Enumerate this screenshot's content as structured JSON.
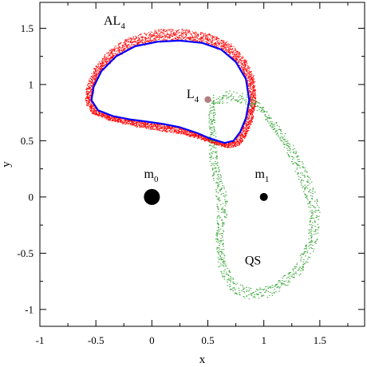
{
  "chart_data": {
    "type": "scatter",
    "xlabel": "x",
    "ylabel": "y",
    "xlim": [
      -1.0,
      1.9
    ],
    "ylim": [
      -1.15,
      1.73
    ],
    "x_ticks": [
      -1,
      -0.5,
      0,
      0.5,
      1,
      1.5
    ],
    "x_tick_labels": [
      "-1",
      "-0.5",
      "0",
      "0.5",
      "1",
      "1.5"
    ],
    "y_ticks": [
      -1,
      -0.5,
      0,
      0.5,
      1,
      1.5
    ],
    "y_tick_labels": [
      "-1",
      "-0.5",
      "0",
      "0.5",
      "1",
      "1.5"
    ],
    "grid": false,
    "colors": {
      "al4_dots": "#ff0000",
      "al4_curve": "#0000ff",
      "qs_dots": "#2ca02c",
      "l4_point": "#b08080",
      "masses": "#000000"
    },
    "annotations": {
      "al4": {
        "main": "AL",
        "sub": "4",
        "x": -0.43,
        "y": 1.53
      },
      "l4": {
        "main": "L",
        "sub": "4",
        "x": 0.31,
        "y": 0.88
      },
      "m0": {
        "main": "m",
        "sub": "0",
        "x": -0.07,
        "y": 0.17
      },
      "m1": {
        "main": "m",
        "sub": "1",
        "x": 0.92,
        "y": 0.17
      },
      "qs": {
        "main": "QS",
        "sub": "",
        "x": 0.83,
        "y": -0.6
      }
    },
    "points": {
      "m0": {
        "x": 0,
        "y": 0,
        "size": "large"
      },
      "m1": {
        "x": 1,
        "y": 0,
        "size": "small"
      },
      "L4": {
        "x": 0.5,
        "y": 0.866
      }
    },
    "al4_orbit": [
      [
        0.65,
        0.48
      ],
      [
        0.73,
        0.5
      ],
      [
        0.79,
        0.58
      ],
      [
        0.84,
        0.7
      ],
      [
        0.87,
        0.86
      ],
      [
        0.84,
        1.05
      ],
      [
        0.75,
        1.2
      ],
      [
        0.62,
        1.31
      ],
      [
        0.45,
        1.37
      ],
      [
        0.25,
        1.39
      ],
      [
        0.05,
        1.38
      ],
      [
        -0.15,
        1.34
      ],
      [
        -0.32,
        1.25
      ],
      [
        -0.45,
        1.12
      ],
      [
        -0.52,
        0.98
      ],
      [
        -0.54,
        0.86
      ],
      [
        -0.48,
        0.77
      ],
      [
        -0.35,
        0.72
      ],
      [
        -0.2,
        0.69
      ],
      [
        -0.05,
        0.67
      ],
      [
        0.1,
        0.65
      ],
      [
        0.25,
        0.62
      ],
      [
        0.4,
        0.57
      ],
      [
        0.52,
        0.52
      ],
      [
        0.65,
        0.48
      ]
    ],
    "qs_orbit": [
      [
        0.55,
        0.86
      ],
      [
        0.7,
        0.9
      ],
      [
        0.85,
        0.87
      ],
      [
        0.98,
        0.78
      ],
      [
        1.12,
        0.6
      ],
      [
        1.26,
        0.38
      ],
      [
        1.38,
        0.12
      ],
      [
        1.45,
        -0.12
      ],
      [
        1.43,
        -0.4
      ],
      [
        1.3,
        -0.65
      ],
      [
        1.1,
        -0.82
      ],
      [
        0.9,
        -0.87
      ],
      [
        0.72,
        -0.8
      ],
      [
        0.62,
        -0.6
      ],
      [
        0.6,
        -0.35
      ],
      [
        0.63,
        -0.1
      ],
      [
        0.6,
        0.1
      ],
      [
        0.55,
        0.3
      ],
      [
        0.54,
        0.52
      ],
      [
        0.53,
        0.72
      ],
      [
        0.55,
        0.86
      ]
    ]
  }
}
